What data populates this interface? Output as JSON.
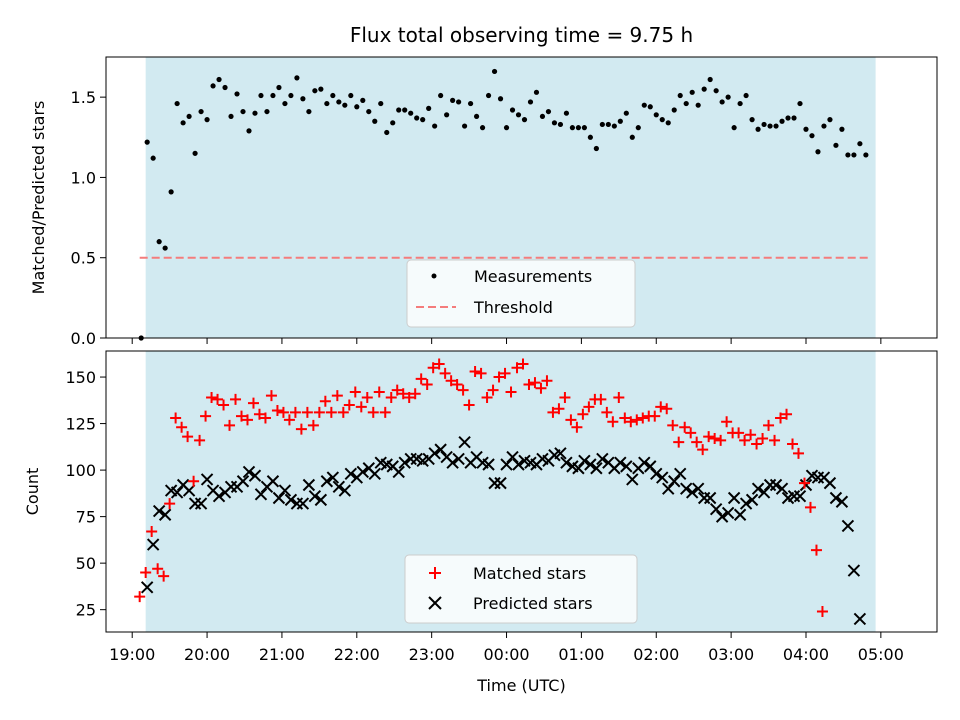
{
  "chart_data": {
    "title": "Flux total observing time = 9.75 h",
    "xlabel": "Time (UTC)",
    "x_ticks": [
      "19:00",
      "20:00",
      "21:00",
      "22:00",
      "23:00",
      "00:00",
      "01:00",
      "02:00",
      "03:00",
      "04:00",
      "05:00"
    ],
    "x_range_hours": [
      -0.35,
      10.75
    ],
    "shaded_span_hours": [
      0.18,
      9.93
    ],
    "colors": {
      "shade": "#add8e6",
      "measurement": "#000000",
      "threshold": "#f47c7c",
      "matched": "#ff0000",
      "predicted": "#000000"
    },
    "top": {
      "type": "scatter",
      "ylabel": "Matched/Predicted stars",
      "ylim": [
        0,
        1.75
      ],
      "y_ticks": [
        "0.0",
        "0.5",
        "1.0",
        "1.5"
      ],
      "threshold": 0.5,
      "legend": {
        "measurements": "Measurements",
        "threshold": "Threshold"
      },
      "measurements": [
        [
          0.12,
          0.0
        ],
        [
          0.2,
          1.22
        ],
        [
          0.28,
          1.12
        ],
        [
          0.36,
          0.6
        ],
        [
          0.44,
          0.56
        ],
        [
          0.52,
          0.91
        ],
        [
          0.6,
          1.46
        ],
        [
          0.68,
          1.34
        ],
        [
          0.76,
          1.38
        ],
        [
          0.84,
          1.15
        ],
        [
          0.92,
          1.41
        ],
        [
          1.0,
          1.36
        ],
        [
          1.08,
          1.57
        ],
        [
          1.16,
          1.61
        ],
        [
          1.24,
          1.56
        ],
        [
          1.32,
          1.38
        ],
        [
          1.4,
          1.52
        ],
        [
          1.48,
          1.41
        ],
        [
          1.56,
          1.29
        ],
        [
          1.64,
          1.4
        ],
        [
          1.72,
          1.51
        ],
        [
          1.8,
          1.41
        ],
        [
          1.88,
          1.51
        ],
        [
          1.96,
          1.56
        ],
        [
          2.04,
          1.46
        ],
        [
          2.12,
          1.51
        ],
        [
          2.2,
          1.62
        ],
        [
          2.28,
          1.49
        ],
        [
          2.36,
          1.41
        ],
        [
          2.44,
          1.54
        ],
        [
          2.52,
          1.55
        ],
        [
          2.6,
          1.46
        ],
        [
          2.68,
          1.51
        ],
        [
          2.76,
          1.47
        ],
        [
          2.84,
          1.45
        ],
        [
          2.92,
          1.51
        ],
        [
          3.0,
          1.44
        ],
        [
          3.08,
          1.48
        ],
        [
          3.16,
          1.41
        ],
        [
          3.24,
          1.35
        ],
        [
          3.32,
          1.46
        ],
        [
          3.4,
          1.28
        ],
        [
          3.48,
          1.34
        ],
        [
          3.56,
          1.42
        ],
        [
          3.64,
          1.42
        ],
        [
          3.72,
          1.4
        ],
        [
          3.8,
          1.37
        ],
        [
          3.88,
          1.36
        ],
        [
          3.96,
          1.43
        ],
        [
          4.04,
          1.32
        ],
        [
          4.12,
          1.51
        ],
        [
          4.2,
          1.39
        ],
        [
          4.28,
          1.48
        ],
        [
          4.36,
          1.47
        ],
        [
          4.44,
          1.32
        ],
        [
          4.52,
          1.46
        ],
        [
          4.6,
          1.38
        ],
        [
          4.68,
          1.31
        ],
        [
          4.76,
          1.51
        ],
        [
          4.84,
          1.66
        ],
        [
          4.92,
          1.49
        ],
        [
          5.0,
          1.31
        ],
        [
          5.08,
          1.42
        ],
        [
          5.16,
          1.39
        ],
        [
          5.24,
          1.36
        ],
        [
          5.32,
          1.47
        ],
        [
          5.4,
          1.53
        ],
        [
          5.48,
          1.38
        ],
        [
          5.56,
          1.41
        ],
        [
          5.64,
          1.34
        ],
        [
          5.72,
          1.33
        ],
        [
          5.8,
          1.4
        ],
        [
          5.88,
          1.31
        ],
        [
          5.96,
          1.31
        ],
        [
          6.04,
          1.31
        ],
        [
          6.12,
          1.25
        ],
        [
          6.2,
          1.18
        ],
        [
          6.28,
          1.33
        ],
        [
          6.36,
          1.33
        ],
        [
          6.44,
          1.32
        ],
        [
          6.52,
          1.35
        ],
        [
          6.6,
          1.4
        ],
        [
          6.68,
          1.25
        ],
        [
          6.76,
          1.31
        ],
        [
          6.84,
          1.45
        ],
        [
          6.92,
          1.44
        ],
        [
          7.0,
          1.39
        ],
        [
          7.08,
          1.36
        ],
        [
          7.16,
          1.34
        ],
        [
          7.24,
          1.42
        ],
        [
          7.32,
          1.51
        ],
        [
          7.4,
          1.46
        ],
        [
          7.48,
          1.53
        ],
        [
          7.56,
          1.45
        ],
        [
          7.64,
          1.55
        ],
        [
          7.72,
          1.61
        ],
        [
          7.8,
          1.54
        ],
        [
          7.88,
          1.47
        ],
        [
          7.96,
          1.5
        ],
        [
          8.04,
          1.31
        ],
        [
          8.12,
          1.46
        ],
        [
          8.2,
          1.51
        ],
        [
          8.28,
          1.36
        ],
        [
          8.36,
          1.3
        ],
        [
          8.44,
          1.33
        ],
        [
          8.52,
          1.32
        ],
        [
          8.6,
          1.32
        ],
        [
          8.68,
          1.35
        ],
        [
          8.76,
          1.37
        ],
        [
          8.84,
          1.37
        ],
        [
          8.92,
          1.46
        ],
        [
          9.0,
          1.3
        ],
        [
          9.08,
          1.26
        ],
        [
          9.16,
          1.16
        ],
        [
          9.24,
          1.32
        ],
        [
          9.32,
          1.36
        ],
        [
          9.4,
          1.2
        ],
        [
          9.48,
          1.3
        ],
        [
          9.56,
          1.14
        ],
        [
          9.64,
          1.14
        ],
        [
          9.72,
          1.21
        ],
        [
          9.8,
          1.14
        ]
      ]
    },
    "bottom": {
      "type": "scatter",
      "ylabel": "Count",
      "ylim": [
        13,
        164
      ],
      "y_ticks": [
        "25",
        "50",
        "75",
        "100",
        "125",
        "150"
      ],
      "legend": {
        "matched": "Matched stars",
        "predicted": "Predicted stars"
      },
      "matched": [
        [
          0.1,
          32
        ],
        [
          0.18,
          45
        ],
        [
          0.26,
          67
        ],
        [
          0.34,
          47
        ],
        [
          0.42,
          43
        ],
        [
          0.5,
          82
        ],
        [
          0.58,
          128
        ],
        [
          0.66,
          123
        ],
        [
          0.74,
          118
        ],
        [
          0.82,
          94
        ],
        [
          0.9,
          116
        ],
        [
          0.98,
          129
        ],
        [
          1.06,
          139
        ],
        [
          1.14,
          138
        ],
        [
          1.22,
          135
        ],
        [
          1.3,
          124
        ],
        [
          1.38,
          138
        ],
        [
          1.46,
          129
        ],
        [
          1.54,
          127
        ],
        [
          1.62,
          136
        ],
        [
          1.7,
          130
        ],
        [
          1.78,
          128
        ],
        [
          1.86,
          140
        ],
        [
          1.94,
          132
        ],
        [
          2.02,
          131
        ],
        [
          2.1,
          127
        ],
        [
          2.18,
          131
        ],
        [
          2.26,
          122
        ],
        [
          2.34,
          131
        ],
        [
          2.42,
          124
        ],
        [
          2.5,
          131
        ],
        [
          2.58,
          137
        ],
        [
          2.66,
          131
        ],
        [
          2.74,
          140
        ],
        [
          2.82,
          131
        ],
        [
          2.9,
          135
        ],
        [
          2.98,
          142
        ],
        [
          3.06,
          134
        ],
        [
          3.14,
          139
        ],
        [
          3.22,
          131
        ],
        [
          3.3,
          142
        ],
        [
          3.38,
          131
        ],
        [
          3.46,
          139
        ],
        [
          3.54,
          143
        ],
        [
          3.62,
          141
        ],
        [
          3.7,
          139
        ],
        [
          3.78,
          141
        ],
        [
          3.86,
          149
        ],
        [
          3.94,
          146
        ],
        [
          4.02,
          155
        ],
        [
          4.1,
          157
        ],
        [
          4.18,
          152
        ],
        [
          4.26,
          148
        ],
        [
          4.34,
          146
        ],
        [
          4.42,
          143
        ],
        [
          4.5,
          135
        ],
        [
          4.58,
          153
        ],
        [
          4.66,
          152
        ],
        [
          4.74,
          139
        ],
        [
          4.82,
          143
        ],
        [
          4.9,
          150
        ],
        [
          4.98,
          152
        ],
        [
          5.06,
          142
        ],
        [
          5.14,
          155
        ],
        [
          5.22,
          157
        ],
        [
          5.3,
          146
        ],
        [
          5.38,
          147
        ],
        [
          5.46,
          144
        ],
        [
          5.54,
          148
        ],
        [
          5.62,
          131
        ],
        [
          5.7,
          133
        ],
        [
          5.78,
          139
        ],
        [
          5.86,
          127
        ],
        [
          5.94,
          123
        ],
        [
          6.02,
          130
        ],
        [
          6.1,
          134
        ],
        [
          6.18,
          138
        ],
        [
          6.26,
          138
        ],
        [
          6.34,
          131
        ],
        [
          6.42,
          126
        ],
        [
          6.5,
          139
        ],
        [
          6.58,
          128
        ],
        [
          6.66,
          126
        ],
        [
          6.74,
          127
        ],
        [
          6.82,
          128
        ],
        [
          6.9,
          129
        ],
        [
          6.98,
          129
        ],
        [
          7.06,
          134
        ],
        [
          7.14,
          133
        ],
        [
          7.22,
          124
        ],
        [
          7.3,
          115
        ],
        [
          7.38,
          123
        ],
        [
          7.46,
          120
        ],
        [
          7.54,
          115
        ],
        [
          7.62,
          111
        ],
        [
          7.7,
          118
        ],
        [
          7.78,
          117
        ],
        [
          7.86,
          116
        ],
        [
          7.94,
          126
        ],
        [
          8.02,
          120
        ],
        [
          8.1,
          120
        ],
        [
          8.18,
          116
        ],
        [
          8.26,
          119
        ],
        [
          8.34,
          114
        ],
        [
          8.42,
          117
        ],
        [
          8.5,
          124
        ],
        [
          8.58,
          116
        ],
        [
          8.66,
          128
        ],
        [
          8.74,
          130
        ],
        [
          8.82,
          114
        ],
        [
          8.9,
          109
        ],
        [
          8.98,
          93
        ],
        [
          9.06,
          80
        ],
        [
          9.14,
          57
        ],
        [
          9.22,
          24
        ]
      ],
      "predicted": [
        [
          0.2,
          37
        ],
        [
          0.28,
          60
        ],
        [
          0.36,
          78
        ],
        [
          0.44,
          76
        ],
        [
          0.52,
          89
        ],
        [
          0.6,
          88
        ],
        [
          0.68,
          92
        ],
        [
          0.76,
          89
        ],
        [
          0.84,
          82
        ],
        [
          0.92,
          82
        ],
        [
          1.0,
          95
        ],
        [
          1.08,
          89
        ],
        [
          1.16,
          86
        ],
        [
          1.24,
          88
        ],
        [
          1.32,
          91
        ],
        [
          1.4,
          91
        ],
        [
          1.48,
          94
        ],
        [
          1.56,
          99
        ],
        [
          1.64,
          97
        ],
        [
          1.72,
          87
        ],
        [
          1.8,
          91
        ],
        [
          1.88,
          94
        ],
        [
          1.96,
          85
        ],
        [
          2.04,
          89
        ],
        [
          2.12,
          84
        ],
        [
          2.2,
          82
        ],
        [
          2.28,
          82
        ],
        [
          2.36,
          92
        ],
        [
          2.44,
          86
        ],
        [
          2.52,
          84
        ],
        [
          2.6,
          94
        ],
        [
          2.68,
          96
        ],
        [
          2.76,
          91
        ],
        [
          2.84,
          89
        ],
        [
          2.92,
          98
        ],
        [
          3.0,
          96
        ],
        [
          3.08,
          99
        ],
        [
          3.16,
          101
        ],
        [
          3.24,
          98
        ],
        [
          3.32,
          104
        ],
        [
          3.4,
          103
        ],
        [
          3.48,
          102
        ],
        [
          3.56,
          99
        ],
        [
          3.64,
          104
        ],
        [
          3.72,
          106
        ],
        [
          3.8,
          106
        ],
        [
          3.88,
          105
        ],
        [
          3.96,
          106
        ],
        [
          4.04,
          109
        ],
        [
          4.12,
          111
        ],
        [
          4.2,
          107
        ],
        [
          4.28,
          104
        ],
        [
          4.36,
          106
        ],
        [
          4.44,
          115
        ],
        [
          4.52,
          104
        ],
        [
          4.6,
          107
        ],
        [
          4.68,
          104
        ],
        [
          4.76,
          103
        ],
        [
          4.84,
          93
        ],
        [
          4.92,
          93
        ],
        [
          5.0,
          103
        ],
        [
          5.08,
          107
        ],
        [
          5.16,
          103
        ],
        [
          5.24,
          105
        ],
        [
          5.32,
          104
        ],
        [
          5.4,
          103
        ],
        [
          5.48,
          106
        ],
        [
          5.56,
          105
        ],
        [
          5.64,
          108
        ],
        [
          5.72,
          109
        ],
        [
          5.8,
          104
        ],
        [
          5.88,
          102
        ],
        [
          5.96,
          101
        ],
        [
          6.04,
          105
        ],
        [
          6.12,
          103
        ],
        [
          6.2,
          101
        ],
        [
          6.28,
          106
        ],
        [
          6.36,
          104
        ],
        [
          6.44,
          101
        ],
        [
          6.52,
          104
        ],
        [
          6.6,
          102
        ],
        [
          6.68,
          95
        ],
        [
          6.76,
          101
        ],
        [
          6.84,
          104
        ],
        [
          6.92,
          102
        ],
        [
          7.0,
          98
        ],
        [
          7.08,
          96
        ],
        [
          7.16,
          90
        ],
        [
          7.24,
          94
        ],
        [
          7.32,
          98
        ],
        [
          7.4,
          90
        ],
        [
          7.48,
          88
        ],
        [
          7.56,
          90
        ],
        [
          7.64,
          85
        ],
        [
          7.72,
          85
        ],
        [
          7.8,
          79
        ],
        [
          7.88,
          75
        ],
        [
          7.96,
          77
        ],
        [
          8.04,
          85
        ],
        [
          8.12,
          76
        ],
        [
          8.2,
          82
        ],
        [
          8.28,
          84
        ],
        [
          8.36,
          90
        ],
        [
          8.44,
          88
        ],
        [
          8.52,
          92
        ],
        [
          8.6,
          92
        ],
        [
          8.68,
          90
        ],
        [
          8.76,
          85
        ],
        [
          8.84,
          86
        ],
        [
          8.92,
          86
        ],
        [
          9.0,
          92
        ],
        [
          9.08,
          97
        ],
        [
          9.16,
          96
        ],
        [
          9.24,
          96
        ],
        [
          9.32,
          93
        ],
        [
          9.4,
          85
        ],
        [
          9.48,
          83
        ],
        [
          9.56,
          70
        ],
        [
          9.64,
          46
        ],
        [
          9.72,
          20
        ]
      ]
    }
  }
}
